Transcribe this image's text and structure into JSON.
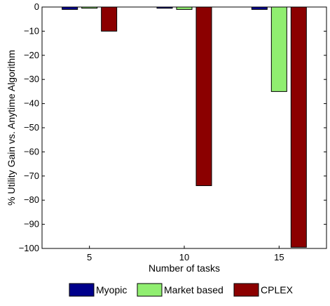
{
  "chart_data": {
    "type": "bar",
    "categories": [
      "5",
      "10",
      "15"
    ],
    "series": [
      {
        "name": "Myopic",
        "values": [
          -1,
          -0.5,
          -1
        ],
        "color": "#00008b"
      },
      {
        "name": "Market based",
        "values": [
          -0.5,
          -1,
          -35
        ],
        "color": "#90ee70"
      },
      {
        "name": "CPLEX",
        "values": [
          -10,
          -74,
          -99.5
        ],
        "color": "#8b0000"
      }
    ],
    "title": "",
    "xlabel": "Number of tasks",
    "ylabel": "% Utility Gain vs. Anytime Algorithm",
    "ylim": [
      -100,
      0
    ],
    "yticks": [
      0,
      -10,
      -20,
      -30,
      -40,
      -50,
      -60,
      -70,
      -80,
      -90,
      -100
    ],
    "ytick_labels": [
      "0",
      "−10",
      "−20",
      "−30",
      "−40",
      "−50",
      "−60",
      "−70",
      "−80",
      "−90",
      "−100"
    ],
    "grid": false,
    "legend_position": "bottom"
  }
}
